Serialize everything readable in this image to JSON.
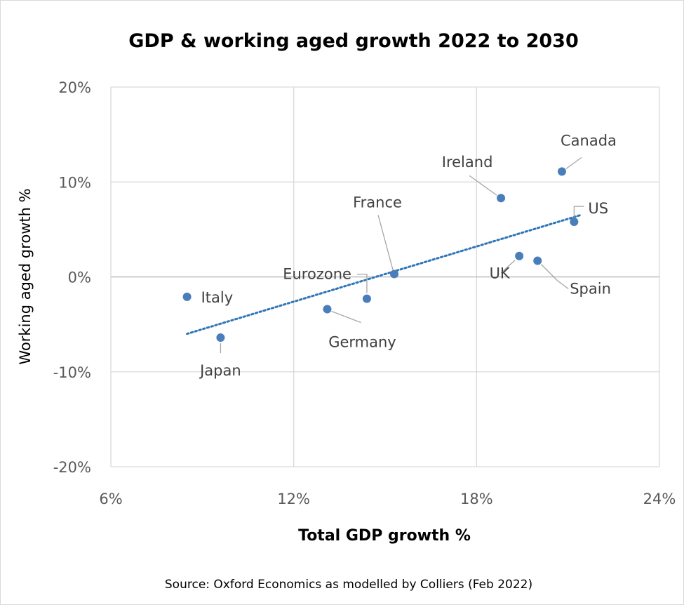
{
  "chart_data": {
    "type": "scatter",
    "title": "GDP & working aged growth 2022 to 2030",
    "xlabel": "Total GDP growth %",
    "ylabel": "Working aged growth %",
    "xlim": [
      6,
      24
    ],
    "ylim": [
      -20,
      20
    ],
    "x_ticks": [
      "6%",
      "12%",
      "18%",
      "24%"
    ],
    "x_tick_values": [
      6,
      12,
      18,
      24
    ],
    "y_ticks": [
      "20%",
      "10%",
      "0%",
      "-10%",
      "-20%"
    ],
    "y_tick_values": [
      20,
      10,
      0,
      -10,
      -20
    ],
    "grid": true,
    "trendline": {
      "style": "dotted-linear",
      "x": [
        8.5,
        21.4
      ],
      "y": [
        -6.0,
        6.5
      ]
    },
    "points": [
      {
        "label": "Italy",
        "x": 8.5,
        "y": -2.1
      },
      {
        "label": "Japan",
        "x": 9.6,
        "y": -6.4
      },
      {
        "label": "Germany",
        "x": 13.1,
        "y": -3.4
      },
      {
        "label": "Eurozone",
        "x": 14.4,
        "y": -2.3
      },
      {
        "label": "France",
        "x": 15.3,
        "y": 0.3
      },
      {
        "label": "Ireland",
        "x": 18.8,
        "y": 8.3
      },
      {
        "label": "UK",
        "x": 19.4,
        "y": 2.2
      },
      {
        "label": "Spain",
        "x": 20.0,
        "y": 1.7
      },
      {
        "label": "Canada",
        "x": 20.8,
        "y": 11.1
      },
      {
        "label": "US",
        "x": 21.2,
        "y": 5.8
      }
    ],
    "source": "Source: Oxford Economics as modelled by Colliers (Feb 2022)"
  },
  "colors": {
    "marker": "#4a7ebb",
    "trendline": "#2e75b6",
    "grid": "#d9d9d9",
    "leader": "#a6a6a6"
  }
}
